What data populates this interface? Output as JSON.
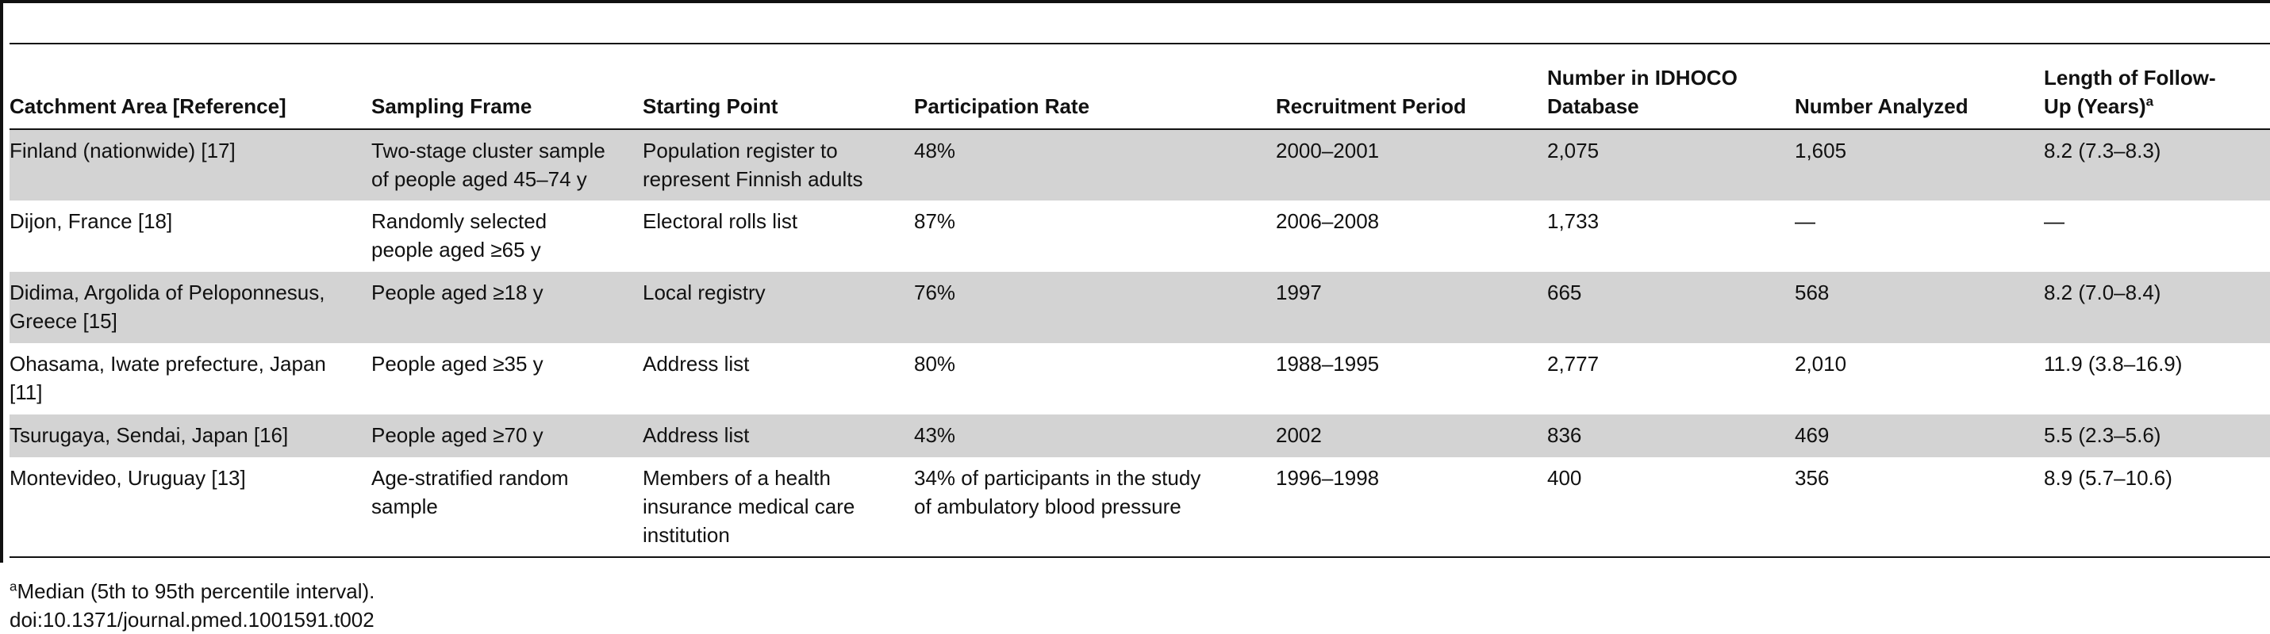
{
  "table": {
    "headers": [
      {
        "key": "catchment",
        "lines": [
          "Catchment Area [Reference]"
        ],
        "sup": ""
      },
      {
        "key": "sampling",
        "lines": [
          "Sampling Frame"
        ],
        "sup": ""
      },
      {
        "key": "starting",
        "lines": [
          "Starting Point"
        ],
        "sup": ""
      },
      {
        "key": "participation",
        "lines": [
          "Participation Rate"
        ],
        "sup": ""
      },
      {
        "key": "recruitment",
        "lines": [
          "Recruitment Period"
        ],
        "sup": ""
      },
      {
        "key": "idhoco",
        "lines": [
          "Number in IDHOCO",
          "Database"
        ],
        "sup": ""
      },
      {
        "key": "analyzed",
        "lines": [
          "Number Analyzed"
        ],
        "sup": ""
      },
      {
        "key": "followup",
        "lines": [
          "Length of Follow-",
          "Up (Years)"
        ],
        "sup": "a"
      }
    ],
    "rows": [
      {
        "cells": [
          [
            "Finland (nationwide) [17]"
          ],
          [
            "Two-stage cluster sample",
            "of people aged 45–74 y"
          ],
          [
            "Population register to",
            "represent Finnish adults"
          ],
          [
            "48%"
          ],
          [
            "2000–2001"
          ],
          [
            "2,075"
          ],
          [
            "1,605"
          ],
          [
            "8.2 (7.3–8.3)"
          ]
        ]
      },
      {
        "cells": [
          [
            "Dijon, France [18]"
          ],
          [
            "Randomly selected",
            "people aged ≥65 y"
          ],
          [
            "Electoral rolls list"
          ],
          [
            "87%"
          ],
          [
            "2006–2008"
          ],
          [
            "1,733"
          ],
          [
            "—"
          ],
          [
            "—"
          ]
        ]
      },
      {
        "cells": [
          [
            "Didima, Argolida of Peloponnesus,",
            "Greece [15]"
          ],
          [
            "People aged ≥18 y"
          ],
          [
            "Local registry"
          ],
          [
            "76%"
          ],
          [
            "1997"
          ],
          [
            "665"
          ],
          [
            "568"
          ],
          [
            "8.2 (7.0–8.4)"
          ]
        ]
      },
      {
        "cells": [
          [
            "Ohasama, Iwate prefecture, Japan",
            "[11]"
          ],
          [
            "People aged ≥35 y"
          ],
          [
            "Address list"
          ],
          [
            "80%"
          ],
          [
            "1988–1995"
          ],
          [
            "2,777"
          ],
          [
            "2,010"
          ],
          [
            "11.9 (3.8–16.9)"
          ]
        ]
      },
      {
        "cells": [
          [
            "Tsurugaya, Sendai, Japan [16]"
          ],
          [
            "People aged ≥70 y"
          ],
          [
            "Address list"
          ],
          [
            "43%"
          ],
          [
            "2002"
          ],
          [
            "836"
          ],
          [
            "469"
          ],
          [
            "5.5 (2.3–5.6)"
          ]
        ]
      },
      {
        "cells": [
          [
            "Montevideo, Uruguay [13]"
          ],
          [
            "Age-stratified random",
            "sample"
          ],
          [
            "Members of a health",
            "insurance medical care",
            "institution"
          ],
          [
            "34% of participants in the study",
            "of ambulatory blood pressure"
          ],
          [
            "1996–1998"
          ],
          [
            "400"
          ],
          [
            "356"
          ],
          [
            "8.9 (5.7–10.6)"
          ]
        ]
      }
    ]
  },
  "footnote": {
    "marker": "a",
    "text": "Median (5th to 95th percentile interval).",
    "doi": "doi:10.1371/journal.pmed.1001591.t002"
  }
}
